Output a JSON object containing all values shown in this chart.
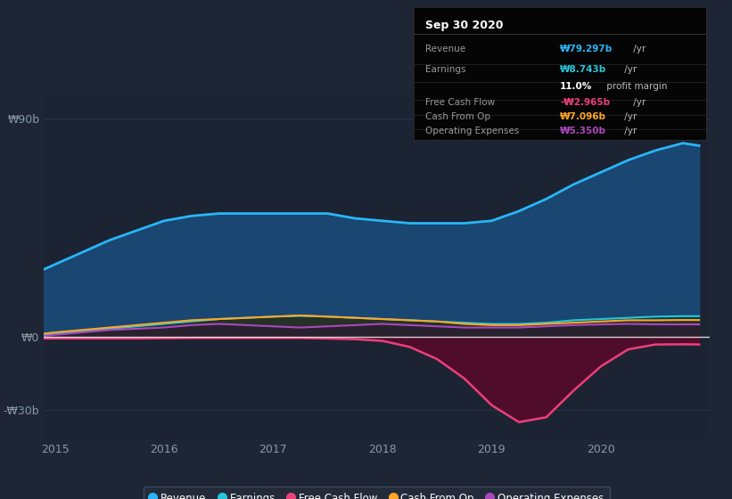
{
  "bg_color": "#1e2535",
  "plot_bg_color": "#1c2333",
  "x_ticks": [
    2015,
    2016,
    2017,
    2018,
    2019,
    2020
  ],
  "y_ticks_labels": [
    "₩90b",
    "₩0",
    "-₩30b"
  ],
  "y_ticks_values": [
    90,
    0,
    -30
  ],
  "ylim": [
    -42,
    102
  ],
  "legend": [
    {
      "label": "Revenue",
      "color": "#29b6f6"
    },
    {
      "label": "Earnings",
      "color": "#26c6da"
    },
    {
      "label": "Free Cash Flow",
      "color": "#ec407a"
    },
    {
      "label": "Cash From Op",
      "color": "#ffa726"
    },
    {
      "label": "Operating Expenses",
      "color": "#ab47bc"
    }
  ],
  "info_box": {
    "title": "Sep 30 2020",
    "rows": [
      {
        "label": "Revenue",
        "value": "₩79.297b",
        "suffix": " /yr",
        "value_color": "#29b6f6"
      },
      {
        "label": "Earnings",
        "value": "₩8.743b",
        "suffix": " /yr",
        "value_color": "#26c6da"
      },
      {
        "label": "",
        "value": "11.0%",
        "suffix": " profit margin",
        "value_color": "#ffffff"
      },
      {
        "label": "Free Cash Flow",
        "value": "-₩2.965b",
        "suffix": " /yr",
        "value_color": "#ec407a"
      },
      {
        "label": "Cash From Op",
        "value": "₩7.096b",
        "suffix": " /yr",
        "value_color": "#ffa726"
      },
      {
        "label": "Operating Expenses",
        "value": "₩5.350b",
        "suffix": " /yr",
        "value_color": "#ab47bc"
      }
    ]
  },
  "series": {
    "x": [
      2014.9,
      2015.0,
      2015.25,
      2015.5,
      2015.75,
      2016.0,
      2016.25,
      2016.5,
      2016.75,
      2017.0,
      2017.25,
      2017.5,
      2017.75,
      2018.0,
      2018.25,
      2018.5,
      2018.75,
      2019.0,
      2019.25,
      2019.5,
      2019.75,
      2020.0,
      2020.25,
      2020.5,
      2020.75,
      2020.9
    ],
    "revenue": [
      28,
      30,
      35,
      40,
      44,
      48,
      50,
      51,
      51,
      51,
      51,
      51,
      49,
      48,
      47,
      47,
      47,
      48,
      52,
      57,
      63,
      68,
      73,
      77,
      80,
      79
    ],
    "earnings": [
      1.0,
      1.5,
      2.5,
      3.5,
      4.5,
      5.5,
      6.5,
      7.5,
      8.0,
      8.5,
      8.8,
      8.5,
      8.0,
      7.5,
      7.0,
      6.5,
      6.0,
      5.5,
      5.5,
      6.0,
      7.0,
      7.5,
      8.0,
      8.5,
      8.7,
      8.7
    ],
    "free_cash_flow": [
      -0.5,
      -0.5,
      -0.5,
      -0.5,
      -0.5,
      -0.4,
      -0.3,
      -0.3,
      -0.3,
      -0.3,
      -0.3,
      -0.5,
      -0.8,
      -1.5,
      -4,
      -9,
      -17,
      -28,
      -35,
      -33,
      -22,
      -12,
      -5,
      -3,
      -2.9,
      -3.0
    ],
    "cash_from_op": [
      1.5,
      2.0,
      3.0,
      4.0,
      5.0,
      6.0,
      7.0,
      7.5,
      8.0,
      8.5,
      9.0,
      8.5,
      8.0,
      7.5,
      7.0,
      6.5,
      5.5,
      5.0,
      5.0,
      5.5,
      6.0,
      6.5,
      7.0,
      7.0,
      7.1,
      7.1
    ],
    "operating_expenses": [
      0.5,
      1.0,
      2.0,
      3.0,
      3.5,
      4.0,
      5.0,
      5.5,
      5.0,
      4.5,
      4.0,
      4.5,
      5.0,
      5.5,
      5.0,
      4.5,
      4.0,
      4.0,
      4.0,
      4.5,
      5.0,
      5.3,
      5.5,
      5.3,
      5.3,
      5.3
    ]
  }
}
